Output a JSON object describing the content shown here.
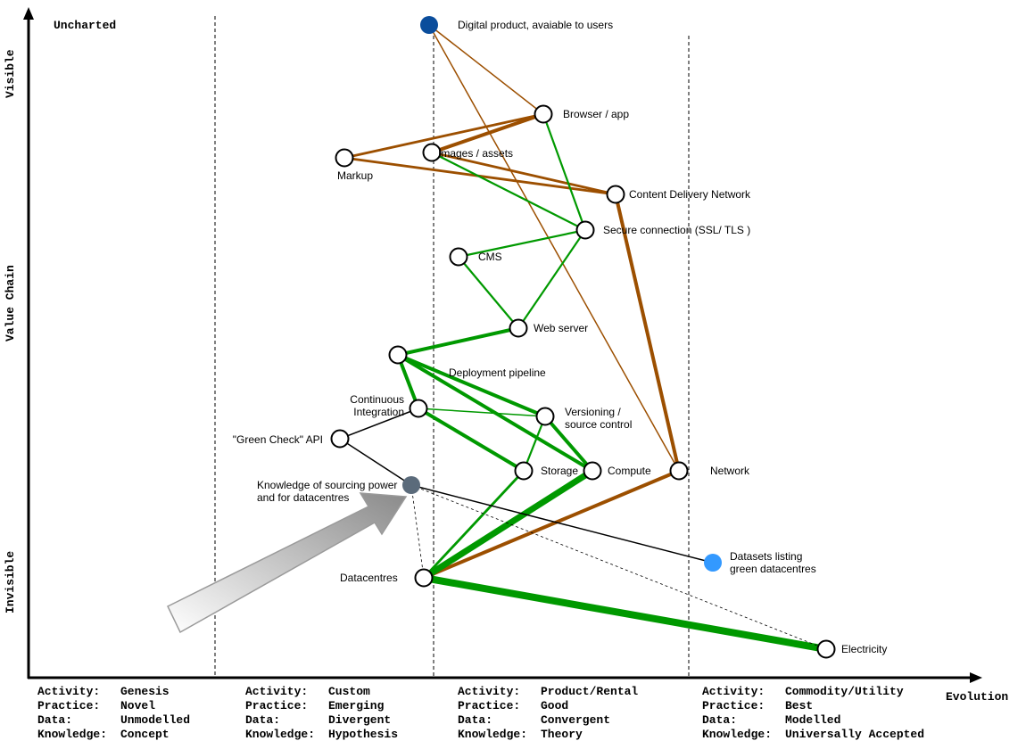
{
  "axes": {
    "y_top": "Visible",
    "y_middle": "Value Chain",
    "y_bottom": "Invisible",
    "x_label": "Evolution",
    "uncharted": "Uncharted"
  },
  "stages": [
    {
      "lines": [
        [
          "Activity:",
          "Genesis"
        ],
        [
          "Practice:",
          "Novel"
        ],
        [
          "Data:",
          "Unmodelled"
        ],
        [
          "Knowledge:",
          "Concept"
        ]
      ]
    },
    {
      "lines": [
        [
          "Activity:",
          "Custom"
        ],
        [
          "Practice:",
          "Emerging"
        ],
        [
          "Data:",
          "Divergent"
        ],
        [
          "Knowledge:",
          "Hypothesis"
        ]
      ]
    },
    {
      "lines": [
        [
          "Activity:",
          "Product/Rental"
        ],
        [
          "Practice:",
          "Good"
        ],
        [
          "Data:",
          "Convergent"
        ],
        [
          "Knowledge:",
          "Theory"
        ]
      ]
    },
    {
      "lines": [
        [
          "Activity:",
          "Commodity/Utility"
        ],
        [
          "Practice:",
          "Best"
        ],
        [
          "Data:",
          "Modelled"
        ],
        [
          "Knowledge:",
          "Universally Accepted"
        ]
      ]
    }
  ],
  "colors": {
    "brown": "#9c4f00",
    "green": "#009900",
    "black": "#000000",
    "user_node": "#0a4d9c",
    "knowledge_node": "#5b6b7b",
    "dataset_node": "#3399ff"
  },
  "nodes": {
    "product": {
      "label": [
        "Digital product, avaiable to users"
      ],
      "fill": "#0a4d9c"
    },
    "browser": {
      "label": [
        "Browser / app"
      ]
    },
    "images": {
      "label": [
        "Images / assets"
      ]
    },
    "markup": {
      "label": [
        "Markup"
      ]
    },
    "cdn": {
      "label": [
        "Content Delivery Network"
      ]
    },
    "secure": {
      "label": [
        "Secure connection (SSL/ TLS )"
      ]
    },
    "cms": {
      "label": [
        "CMS"
      ]
    },
    "webserver": {
      "label": [
        "Web server"
      ]
    },
    "deploy": {
      "label": [
        "Deployment pipeline"
      ]
    },
    "ci": {
      "label": [
        "Continuous",
        "Integration"
      ]
    },
    "greencheck": {
      "label": [
        "\"Green Check\" API"
      ]
    },
    "knowledge": {
      "label": [
        "Knowledge of sourcing power",
        "and for datacentres"
      ],
      "fill": "#5b6b7b"
    },
    "versioning": {
      "label": [
        "Versioning /",
        "source control"
      ]
    },
    "storage": {
      "label": [
        "Storage"
      ]
    },
    "compute": {
      "label": [
        "Compute"
      ]
    },
    "network": {
      "label": [
        "Network"
      ]
    },
    "datacentres": {
      "label": [
        "Datacentres"
      ]
    },
    "datasets": {
      "label": [
        "Datasets listing",
        "green datacentres"
      ],
      "fill": "#3399ff"
    },
    "electricity": {
      "label": [
        "Electricity"
      ]
    }
  },
  "links": [
    {
      "from": "product",
      "to": "browser",
      "color": "brown",
      "weight": "thin"
    },
    {
      "from": "product",
      "to": "network",
      "color": "brown",
      "weight": "thin"
    },
    {
      "from": "browser",
      "to": "markup",
      "color": "brown",
      "weight": "medium"
    },
    {
      "from": "browser",
      "to": "images",
      "color": "brown",
      "weight": "heavy"
    },
    {
      "from": "markup",
      "to": "cdn",
      "color": "brown",
      "weight": "medium"
    },
    {
      "from": "images",
      "to": "cdn",
      "color": "brown",
      "weight": "medium"
    },
    {
      "from": "cdn",
      "to": "network",
      "color": "brown",
      "weight": "heavy"
    },
    {
      "from": "datacentres",
      "to": "network",
      "color": "brown",
      "weight": "heavy"
    },
    {
      "from": "browser",
      "to": "secure",
      "color": "green",
      "weight": "normal"
    },
    {
      "from": "images",
      "to": "secure",
      "color": "green",
      "weight": "normal"
    },
    {
      "from": "secure",
      "to": "cms",
      "color": "green",
      "weight": "normal"
    },
    {
      "from": "cms",
      "to": "webserver",
      "color": "green",
      "weight": "normal"
    },
    {
      "from": "secure",
      "to": "webserver",
      "color": "green",
      "weight": "normal"
    },
    {
      "from": "webserver",
      "to": "deploy",
      "color": "green",
      "weight": "heavy"
    },
    {
      "from": "deploy",
      "to": "ci",
      "color": "green",
      "weight": "heavy"
    },
    {
      "from": "deploy",
      "to": "versioning",
      "color": "green",
      "weight": "heavy"
    },
    {
      "from": "deploy",
      "to": "compute",
      "color": "green",
      "weight": "heavy"
    },
    {
      "from": "ci",
      "to": "storage",
      "color": "green",
      "weight": "heavy"
    },
    {
      "from": "ci",
      "to": "versioning",
      "color": "green",
      "weight": "thin"
    },
    {
      "from": "versioning",
      "to": "compute",
      "color": "green",
      "weight": "heavy"
    },
    {
      "from": "versioning",
      "to": "storage",
      "color": "green",
      "weight": "normal"
    },
    {
      "from": "storage",
      "to": "datacentres",
      "color": "green",
      "weight": "medium"
    },
    {
      "from": "compute",
      "to": "datacentres",
      "color": "green",
      "weight": "xheavy"
    },
    {
      "from": "datacentres",
      "to": "electricity",
      "color": "green",
      "weight": "xxheavy"
    },
    {
      "from": "greencheck",
      "to": "ci",
      "color": "black",
      "weight": "thin"
    },
    {
      "from": "greencheck",
      "to": "knowledge",
      "color": "black",
      "weight": "thin"
    },
    {
      "from": "knowledge",
      "to": "datasets",
      "color": "black",
      "weight": "thin"
    },
    {
      "from": "knowledge",
      "to": "datacentres",
      "color": "black",
      "weight": "dashed"
    },
    {
      "from": "knowledge",
      "to": "electricity",
      "color": "black",
      "weight": "dashed"
    }
  ]
}
